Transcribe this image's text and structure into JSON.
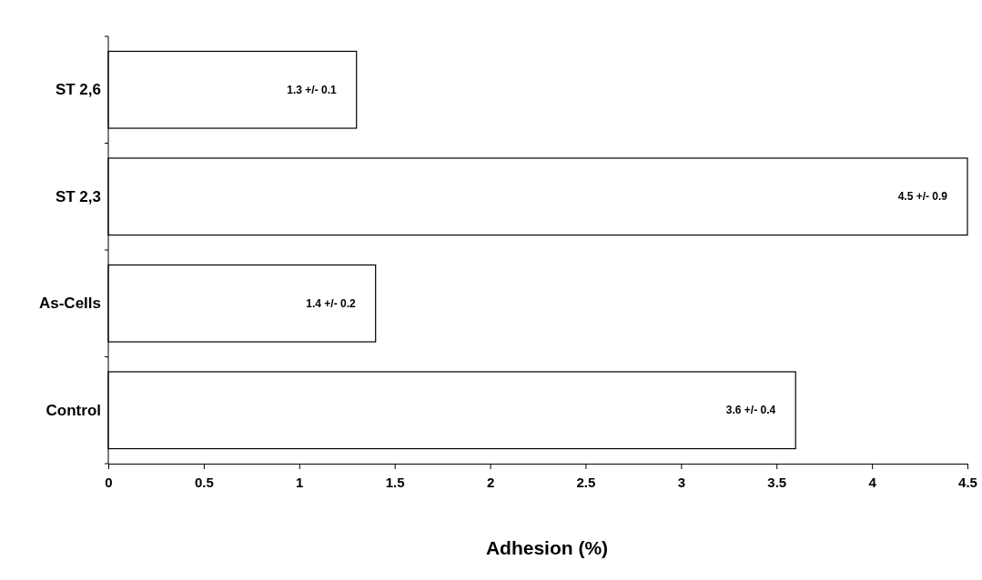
{
  "chart_data": {
    "type": "bar",
    "orientation": "horizontal",
    "xlabel": "Adhesion (%)",
    "categories": [
      "ST 2,6",
      "ST 2,3",
      "As-Cells",
      "Control"
    ],
    "values": [
      1.3,
      4.5,
      1.4,
      3.6
    ],
    "value_labels": [
      "1.3 +/- 0.1",
      "4.5 +/- 0.9",
      "1.4 +/- 0.2",
      "3.6 +/- 0.4"
    ],
    "color": "#ffffff",
    "xlim": [
      0,
      4.5
    ],
    "xticks": [
      0,
      0.5,
      1,
      1.5,
      2,
      2.5,
      3,
      3.5,
      4,
      4.5
    ],
    "grid": false
  }
}
